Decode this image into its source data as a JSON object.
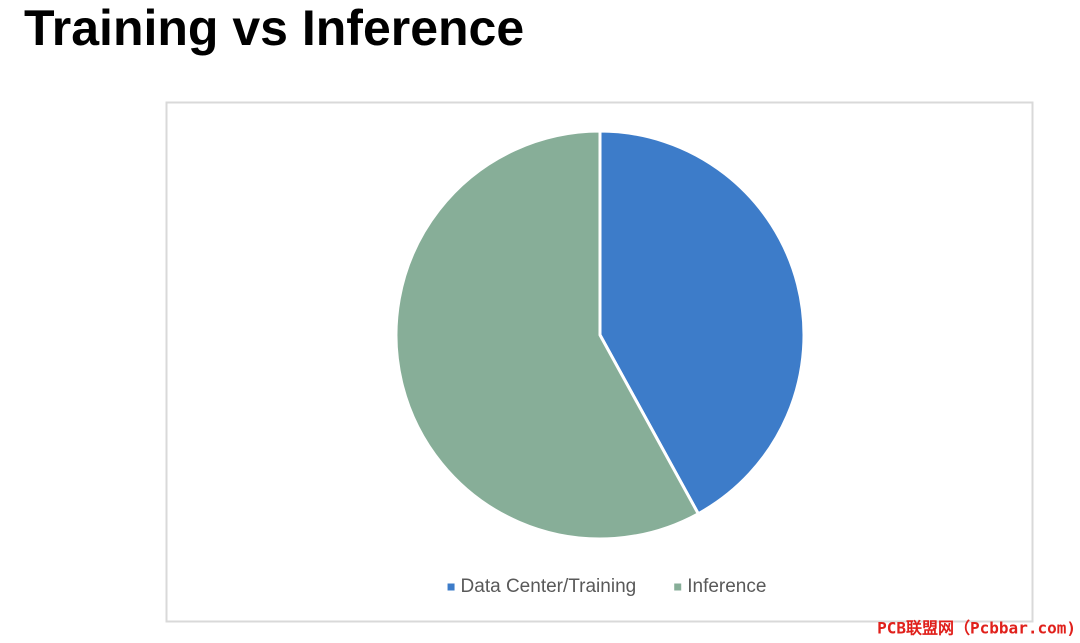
{
  "chart_data": {
    "type": "pie",
    "title": "Training vs Inference",
    "categories": [
      "Data Center/Training",
      "Inference"
    ],
    "values": [
      42,
      58
    ],
    "colors": [
      "#3d7cc9",
      "#87ae98"
    ],
    "legend": "bottom"
  },
  "watermark": "PCB联盟网（Pcbbar.com)"
}
